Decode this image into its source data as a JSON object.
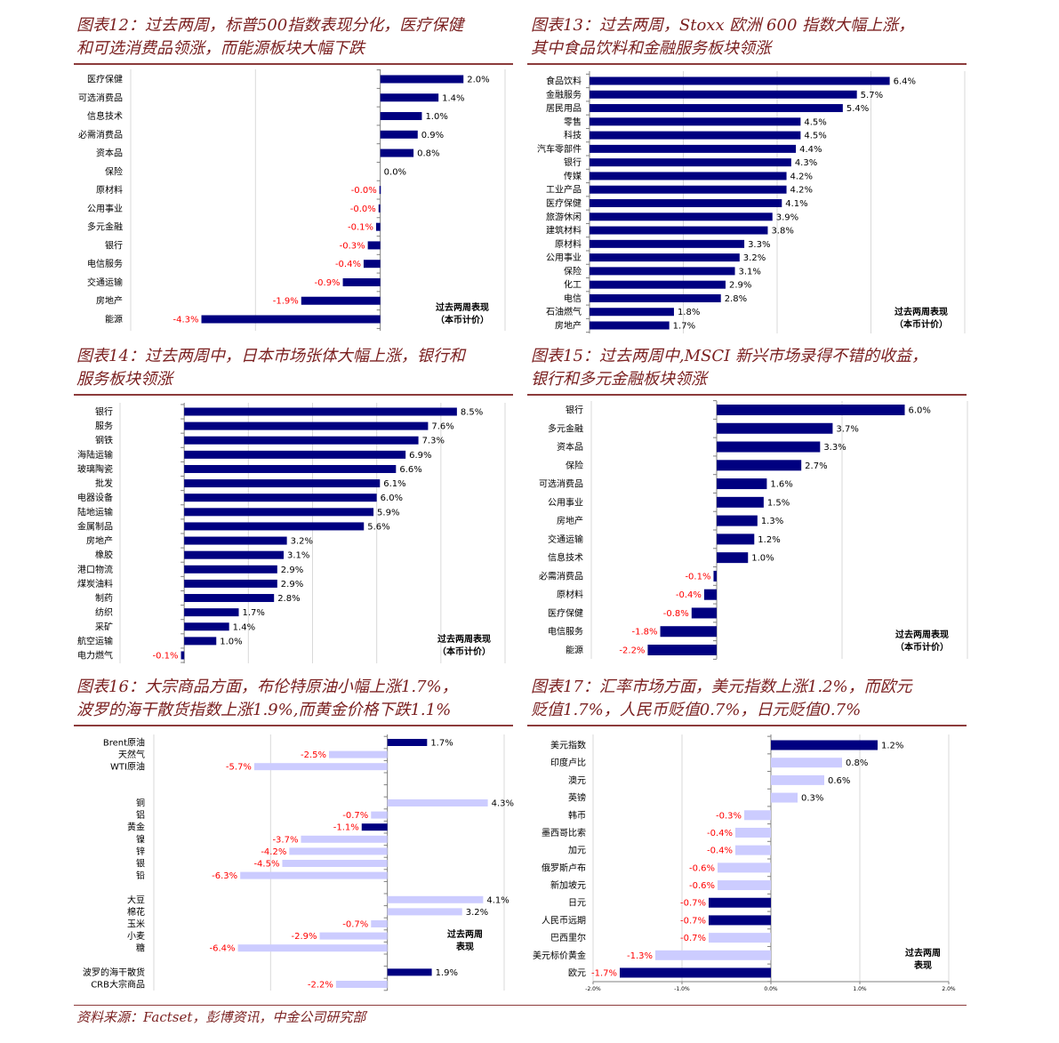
{
  "colors": {
    "dark_bar": "#000080",
    "light_bar": "#ccccff",
    "negative_label": "#ff0000",
    "positive_label": "#000000",
    "title": "#7a1f1f"
  },
  "source": "资料来源：Factset，彭博资讯，中金公司研究部",
  "chart_data": [
    {
      "type": "bar",
      "orientation": "horizontal",
      "title_lines": [
        "图表12：过去两周，标普500指数表现分化，医疗保健",
        "和可选消费品领涨，而能源板块大幅下跌"
      ],
      "annotation": [
        "过去两周表现",
        "（本币计价）"
      ],
      "categories": [
        "医疗保健",
        "可选消费品",
        "信息技术",
        "必需消费品",
        "资本品",
        "保险",
        "原材料",
        "公用事业",
        "多元金融",
        "银行",
        "电信服务",
        "交通运输",
        "房地产",
        "能源"
      ],
      "values": [
        2.0,
        1.4,
        1.0,
        0.9,
        0.8,
        0.0,
        -0.02,
        -0.04,
        -0.1,
        -0.3,
        -0.4,
        -0.9,
        -1.9,
        -4.3
      ],
      "unit": "%",
      "xlim": [
        -6,
        3
      ],
      "grid": true
    },
    {
      "type": "bar",
      "orientation": "horizontal",
      "title_lines": [
        "图表13：过去两周，Stoxx 欧洲 600 指数大幅上涨，",
        "其中食品饮料和金融服务板块领涨"
      ],
      "annotation": [
        "过去两周表现",
        "（本币计价）"
      ],
      "categories": [
        "食品饮料",
        "金融服务",
        "居民用品",
        "零售",
        "科技",
        "汽车零部件",
        "银行",
        "传媒",
        "工业产品",
        "医疗保健",
        "旅游休闲",
        "建筑材料",
        "原材料",
        "公用事业",
        "保险",
        "化工",
        "电信",
        "石油燃气",
        "房地产"
      ],
      "values": [
        6.4,
        5.7,
        5.4,
        4.5,
        4.5,
        4.4,
        4.3,
        4.2,
        4.2,
        4.1,
        3.9,
        3.8,
        3.3,
        3.2,
        3.1,
        2.9,
        2.8,
        1.8,
        1.7
      ],
      "unit": "%",
      "xlim": [
        0,
        8
      ],
      "grid": true
    },
    {
      "type": "bar",
      "orientation": "horizontal",
      "title_lines": [
        "图表14：过去两周中，日本市场张体大幅上涨，银行和",
        "服务板块领涨"
      ],
      "annotation": [
        "过去两周表现",
        "（本币计价）"
      ],
      "categories": [
        "银行",
        "服务",
        "钢铁",
        "海陆运输",
        "玻璃陶瓷",
        "批发",
        "电器设备",
        "陆地运输",
        "金属制品",
        "房地产",
        "橡胶",
        "港口物流",
        "煤炭油料",
        "制药",
        "纺织",
        "采矿",
        "航空运输",
        "电力燃气"
      ],
      "values": [
        8.5,
        7.6,
        7.3,
        6.9,
        6.6,
        6.1,
        6.0,
        5.9,
        5.6,
        3.2,
        3.1,
        2.9,
        2.9,
        2.8,
        1.7,
        1.4,
        1.0,
        -0.1
      ],
      "unit": "%",
      "xlim": [
        -2,
        10
      ],
      "grid": true
    },
    {
      "type": "bar",
      "orientation": "horizontal",
      "title_lines": [
        "图表15：过去两周中,MSCI 新兴市场录得不错的收益，",
        "银行和多元金融板块领涨"
      ],
      "annotation": [
        "过去两周表现",
        "（本币计价）"
      ],
      "categories": [
        "银行",
        "多元金融",
        "资本品",
        "保险",
        "可选消费品",
        "公用事业",
        "房地产",
        "交通运输",
        "信息技术",
        "必需消费品",
        "原材料",
        "医疗保健",
        "电信服务",
        "能源"
      ],
      "values": [
        6.0,
        3.7,
        3.3,
        2.7,
        1.6,
        1.5,
        1.3,
        1.2,
        1.0,
        -0.1,
        -0.4,
        -0.8,
        -1.8,
        -2.2
      ],
      "unit": "%",
      "xlim": [
        -4,
        8
      ],
      "grid": true
    },
    {
      "type": "bar",
      "orientation": "horizontal",
      "title_lines": [
        "图表16：大宗商品方面，布伦特原油小幅上涨1.7%，",
        "波罗的海干散货指数上涨1.9%,而黄金价格下跌1.1%"
      ],
      "annotation": [
        "过去两周",
        "表现"
      ],
      "categories": [
        "Brent原油",
        "天然气",
        "WTI原油",
        "铜",
        "铝",
        "黄金",
        "镍",
        "锌",
        "银",
        "铅",
        "大豆",
        "棉花",
        "玉米",
        "小麦",
        "糖",
        "波罗的海干散货",
        "CRB大宗商品"
      ],
      "values": [
        1.7,
        -2.5,
        -5.7,
        4.3,
        -0.7,
        -1.1,
        -3.7,
        -4.2,
        -4.5,
        -6.3,
        4.1,
        3.2,
        -0.7,
        -2.9,
        -6.4,
        1.9,
        -2.2
      ],
      "highlight": [
        true,
        false,
        false,
        false,
        false,
        true,
        false,
        false,
        false,
        false,
        false,
        false,
        false,
        false,
        false,
        true,
        false
      ],
      "unit": "%",
      "xlim": [
        -10,
        5
      ],
      "grid": true
    },
    {
      "type": "bar",
      "orientation": "horizontal",
      "title_lines": [
        "图表17：汇率市场方面，美元指数上涨1.2%，而欧元",
        "贬值1.7%，人民币贬值0.7%，日元贬值0.7%"
      ],
      "annotation": [
        "过去两周",
        "表现"
      ],
      "categories": [
        "美元指数",
        "印度卢比",
        "澳元",
        "英镑",
        "韩币",
        "墨西哥比索",
        "加元",
        "俄罗斯卢布",
        "新加坡元",
        "日元",
        "人民币远期",
        "巴西里尔",
        "美元标价黄金",
        "欧元"
      ],
      "values": [
        1.2,
        0.8,
        0.6,
        0.3,
        -0.3,
        -0.4,
        -0.4,
        -0.6,
        -0.6,
        -0.7,
        -0.7,
        -0.7,
        -1.3,
        -1.7
      ],
      "highlight": [
        true,
        false,
        false,
        false,
        false,
        false,
        false,
        false,
        false,
        true,
        true,
        false,
        false,
        true
      ],
      "x_tick_labels": [
        "-2.0%",
        "-1.0%",
        "0.0%",
        "1.0%",
        "2.0%"
      ],
      "unit": "%",
      "xlim": [
        -2,
        2
      ],
      "grid": true
    }
  ]
}
